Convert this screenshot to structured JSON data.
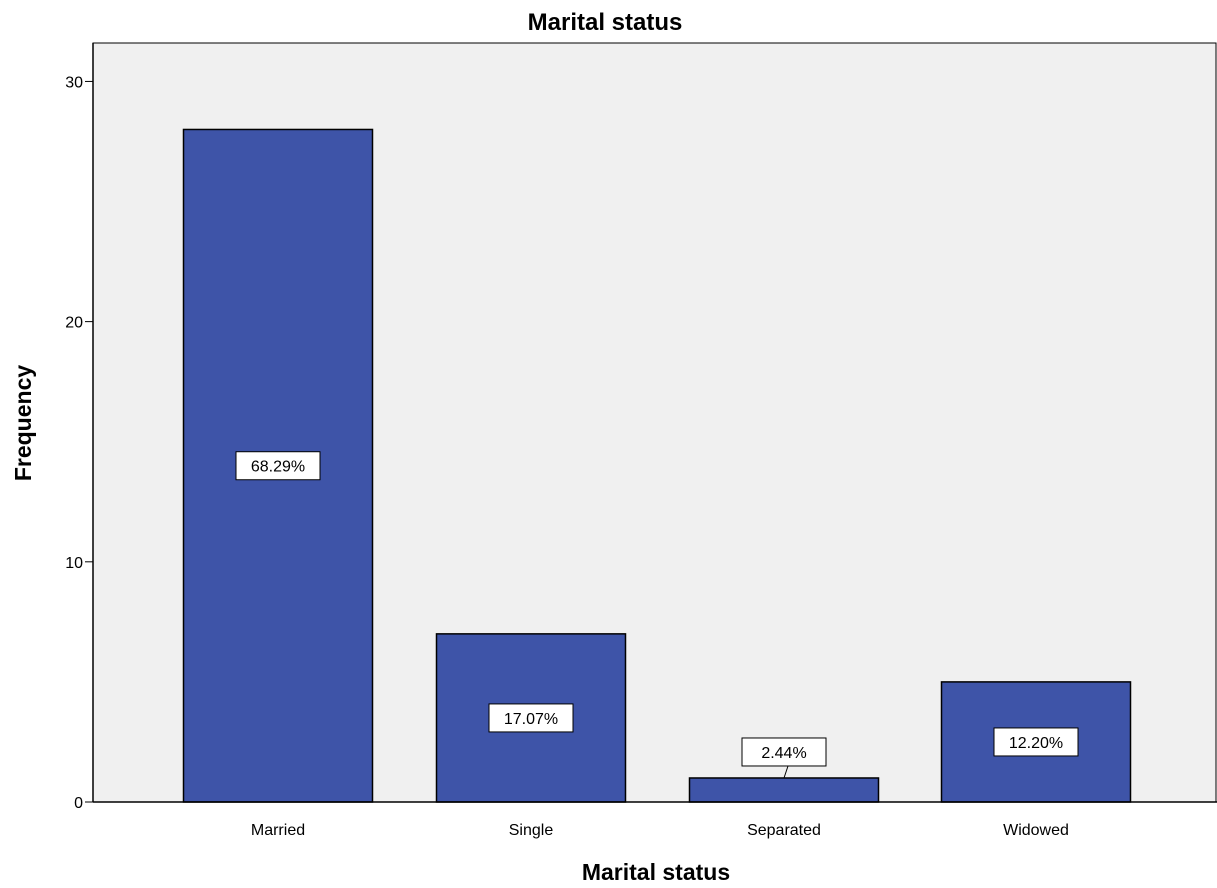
{
  "chart_data": {
    "type": "bar",
    "title": "Marital status",
    "xlabel": "Marital status",
    "ylabel": "Frequency",
    "categories": [
      "Married",
      "Single",
      "Separated",
      "Widowed"
    ],
    "values": [
      28,
      7,
      1,
      5
    ],
    "data_labels": [
      "68.29%",
      "17.07%",
      "2.44%",
      "12.20%"
    ],
    "yticks": [
      0,
      10,
      20,
      30
    ],
    "ylim": [
      0,
      31.6
    ],
    "grid": false,
    "legend": "none",
    "colors": {
      "bar": "#3e54a8",
      "plot_background": "#f0f0f0",
      "page_background": "#ffffff"
    }
  }
}
